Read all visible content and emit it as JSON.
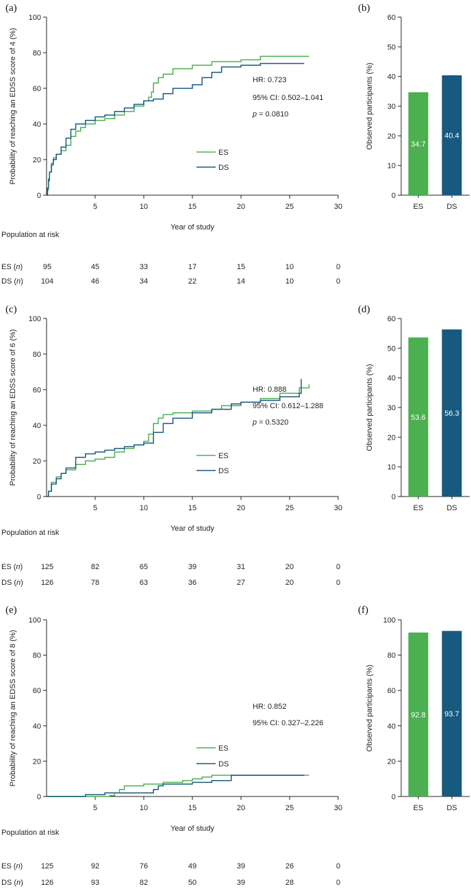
{
  "colors": {
    "ES": "#4caf50",
    "DS": "#175a7e",
    "axis": "#222222"
  },
  "chart_data": [
    {
      "id": "a",
      "type": "line",
      "panel_label": "(a)",
      "xlabel": "Year of study",
      "ylabel": "Probability of reaching an EDSS score of 4 (%)",
      "xlim": [
        0,
        30
      ],
      "ylim": [
        0,
        100
      ],
      "xticks": [
        "5",
        "10",
        "15",
        "20",
        "25",
        "30"
      ],
      "yticks": [
        "0",
        "20",
        "40",
        "60",
        "80",
        "100"
      ],
      "legend": [
        "ES",
        "DS"
      ],
      "annotations": [
        "HR: 0.723",
        "95% CI: 0.502–1.041",
        "p = 0.0810"
      ],
      "series": [
        {
          "name": "ES",
          "x": [
            0,
            0.1,
            0.2,
            0.3,
            0.5,
            0.7,
            1,
            1.5,
            2,
            2.5,
            3,
            3.5,
            4,
            5,
            6,
            7,
            8,
            9,
            10,
            10.5,
            10.8,
            11,
            11.5,
            12,
            13,
            15,
            17,
            20,
            22,
            27
          ],
          "y": [
            0,
            3,
            8,
            13,
            18,
            21,
            23,
            25,
            28,
            33,
            36,
            38,
            40,
            42,
            43,
            45,
            47,
            50,
            53,
            55,
            58,
            63,
            66,
            68,
            71,
            73,
            75,
            76,
            78,
            78
          ]
        },
        {
          "name": "DS",
          "x": [
            0,
            0.1,
            0.2,
            0.3,
            0.5,
            0.7,
            1,
            1.5,
            2,
            2.5,
            3,
            4,
            5,
            6,
            7,
            8,
            9,
            10,
            11,
            12,
            13,
            15,
            16,
            17,
            18,
            20,
            22,
            26.5
          ],
          "y": [
            0,
            4,
            9,
            13,
            17,
            20,
            23,
            27,
            32,
            37,
            40,
            42,
            44,
            45,
            47,
            49,
            51,
            53,
            54,
            57,
            60,
            62,
            66,
            69,
            72,
            73,
            74,
            74
          ]
        }
      ],
      "risk_header": "Population at risk",
      "risk_rows": [
        {
          "label": "ES (",
          "italic": "n",
          "tail": ")",
          "values": [
            "95",
            "45",
            "33",
            "17",
            "15",
            "10",
            "0"
          ]
        },
        {
          "label": "DS (",
          "italic": "n",
          "tail": ")",
          "values": [
            "104",
            "46",
            "34",
            "22",
            "14",
            "10",
            "0"
          ]
        }
      ],
      "risk_x": [
        0,
        5,
        10,
        15,
        20,
        25,
        30
      ]
    },
    {
      "id": "b",
      "type": "bar",
      "panel_label": "(b)",
      "ylabel": "Observed participants (%)",
      "categories": [
        "ES",
        "DS"
      ],
      "values": [
        34.7,
        40.4
      ],
      "value_labels": [
        "34.7",
        "40.4"
      ],
      "ylim": [
        0,
        60
      ],
      "yticks": [
        "0",
        "10",
        "20",
        "30",
        "40",
        "50",
        "60"
      ]
    },
    {
      "id": "c",
      "type": "line",
      "panel_label": "(c)",
      "xlabel": "Year of study",
      "ylabel": "Probability of reaching an EDSS score of 6 (%)",
      "xlim": [
        0,
        30
      ],
      "ylim": [
        0,
        100
      ],
      "xticks": [
        "5",
        "10",
        "15",
        "20",
        "25",
        "30"
      ],
      "yticks": [
        "0",
        "20",
        "40",
        "60",
        "80",
        "100"
      ],
      "legend": [
        "ES",
        "DS"
      ],
      "annotations": [
        "HR: 0.888",
        "95% CI: 0.612–1.288",
        "p = 0.5320"
      ],
      "series": [
        {
          "name": "ES",
          "x": [
            0,
            0.2,
            0.5,
            1,
            1.5,
            2,
            3,
            4,
            5,
            6,
            7,
            8,
            9,
            10,
            10.5,
            11,
            11.5,
            12,
            13,
            15,
            17,
            18,
            20,
            22,
            24,
            26,
            27
          ],
          "y": [
            0,
            3,
            8,
            11,
            13,
            15,
            18,
            20,
            21,
            22,
            25,
            27,
            29,
            31,
            35,
            41,
            44,
            46,
            47,
            48,
            49,
            51,
            53,
            55,
            58,
            61,
            63
          ]
        },
        {
          "name": "DS",
          "x": [
            0,
            0.2,
            0.5,
            1,
            1.5,
            2,
            3,
            4,
            5,
            6,
            7,
            8,
            9,
            10,
            11,
            12,
            13,
            15,
            17,
            19,
            20,
            22,
            24,
            26,
            26.2
          ],
          "y": [
            0,
            3,
            7,
            10,
            13,
            16,
            22,
            24,
            25,
            26,
            27,
            28,
            29,
            30,
            36,
            41,
            44,
            47,
            49,
            52,
            53,
            54,
            56,
            58,
            66
          ]
        }
      ],
      "risk_header": "Population at risk",
      "risk_rows": [
        {
          "label": "ES (",
          "italic": "n",
          "tail": ")",
          "values": [
            "125",
            "82",
            "65",
            "39",
            "31",
            "20",
            "0"
          ]
        },
        {
          "label": "DS (",
          "italic": "n",
          "tail": ")",
          "values": [
            "126",
            "78",
            "63",
            "36",
            "27",
            "20",
            "0"
          ]
        }
      ],
      "risk_x": [
        0,
        5,
        10,
        15,
        20,
        25,
        30
      ]
    },
    {
      "id": "d",
      "type": "bar",
      "panel_label": "(d)",
      "ylabel": "Observed participants (%)",
      "categories": [
        "ES",
        "DS"
      ],
      "values": [
        53.6,
        56.3
      ],
      "value_labels": [
        "53.6",
        "56.3"
      ],
      "ylim": [
        0,
        60
      ],
      "yticks": [
        "0",
        "10",
        "20",
        "30",
        "40",
        "50",
        "60"
      ]
    },
    {
      "id": "e",
      "type": "line",
      "panel_label": "(e)",
      "xlabel": "Year of study",
      "ylabel": "Probability of reaching an EDSS score of 8 (%)",
      "xlim": [
        0,
        30
      ],
      "ylim": [
        0,
        100
      ],
      "xticks": [
        "5",
        "10",
        "15",
        "20",
        "25",
        "30"
      ],
      "yticks": [
        "0",
        "20",
        "40",
        "60",
        "80",
        "100"
      ],
      "legend": [
        "ES",
        "DS"
      ],
      "annotations": [
        "HR: 0.852",
        "95% CI: 0.327–2.226"
      ],
      "series": [
        {
          "name": "ES",
          "x": [
            0,
            3,
            6.5,
            7,
            7.5,
            8,
            9,
            10,
            12,
            14,
            15,
            16,
            17,
            20,
            27
          ],
          "y": [
            0,
            0,
            0.5,
            2,
            4,
            6,
            6,
            7,
            8,
            9,
            10,
            11,
            12,
            12,
            12
          ]
        },
        {
          "name": "DS",
          "x": [
            0,
            3,
            4,
            6,
            8,
            10,
            11,
            11.5,
            12,
            15,
            17,
            19,
            26.5
          ],
          "y": [
            0,
            0,
            1,
            2,
            2,
            2,
            4,
            6,
            7,
            8,
            9,
            12,
            12
          ]
        }
      ],
      "risk_header": "Population at risk",
      "risk_rows": [
        {
          "label": "ES (",
          "italic": "n",
          "tail": ")",
          "values": [
            "125",
            "92",
            "76",
            "49",
            "39",
            "26",
            "0"
          ]
        },
        {
          "label": "DS (",
          "italic": "n",
          "tail": ")",
          "values": [
            "126",
            "93",
            "82",
            "50",
            "39",
            "28",
            "0"
          ]
        }
      ],
      "risk_x": [
        0,
        5,
        10,
        15,
        20,
        25,
        30
      ]
    },
    {
      "id": "f",
      "type": "bar",
      "panel_label": "(f)",
      "ylabel": "Observed participants (%)",
      "categories": [
        "ES",
        "DS"
      ],
      "values": [
        92.8,
        93.7
      ],
      "value_labels": [
        "92.8",
        "93.7"
      ],
      "ylim": [
        0,
        100
      ],
      "yticks": [
        "0",
        "20",
        "40",
        "60",
        "80",
        "100"
      ]
    }
  ]
}
